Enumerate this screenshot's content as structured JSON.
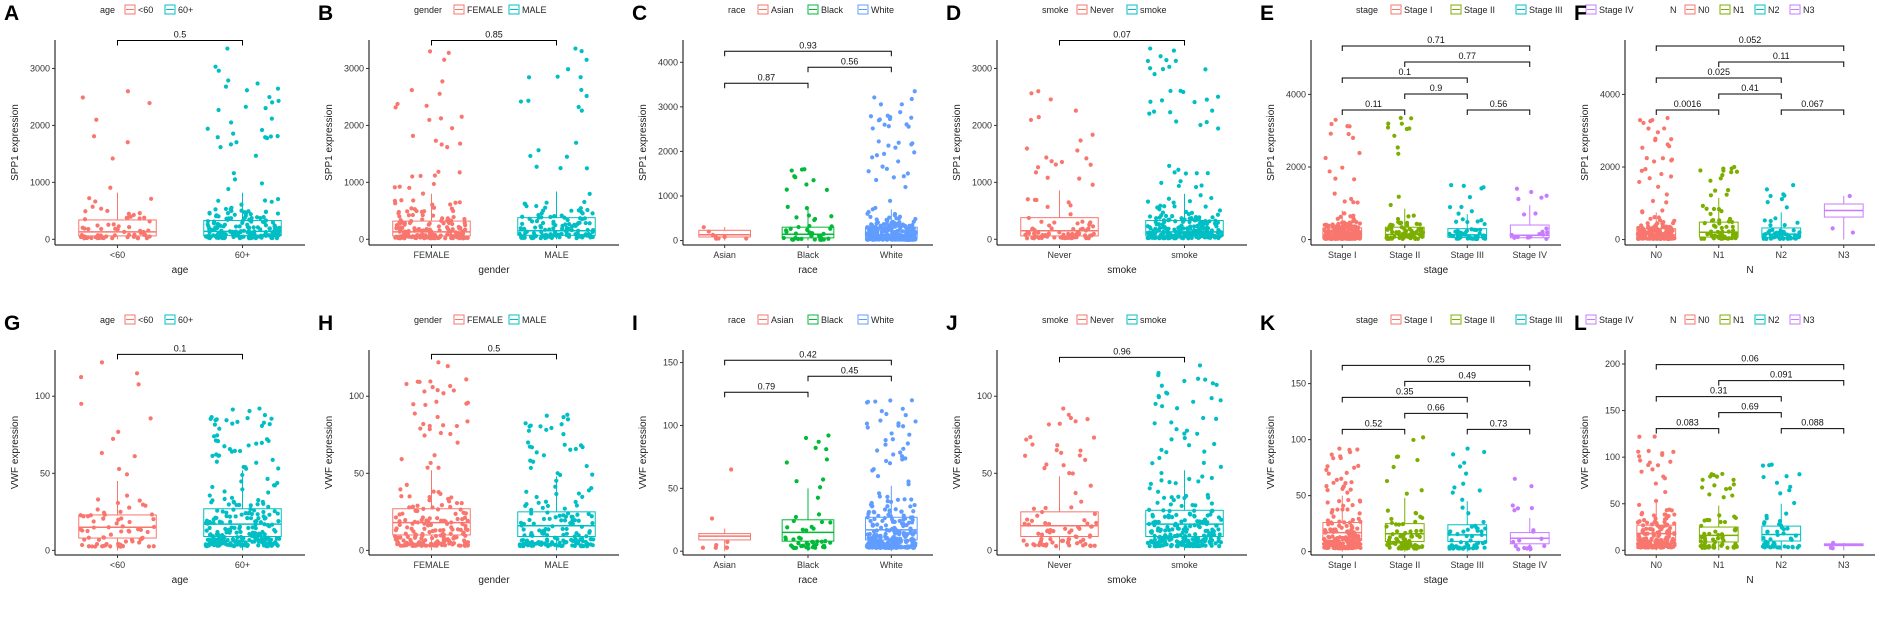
{
  "chart_data": [
    {
      "panel": "A",
      "type": "box",
      "legend_title": "age",
      "groups": [
        "<60",
        "60+"
      ],
      "colors": [
        "#F8766D",
        "#00BFC4"
      ],
      "xlabel": "age",
      "ylabel": "SPP1 expression",
      "yticks": [
        0,
        1000,
        2000,
        3000
      ],
      "ylim": [
        -100,
        3500
      ],
      "medians": [
        130,
        140
      ],
      "q1": [
        60,
        65
      ],
      "q3": [
        340,
        330
      ],
      "upper_whisker": [
        820,
        820
      ],
      "point_max": [
        2600,
        3350
      ],
      "n_points": [
        70,
        200
      ],
      "comparisons": [
        {
          "pair": [
            1,
            2
          ],
          "p": "0.5"
        }
      ]
    },
    {
      "panel": "B",
      "type": "box",
      "legend_title": "gender",
      "groups": [
        "FEMALE",
        "MALE"
      ],
      "colors": [
        "#F8766D",
        "#00BFC4"
      ],
      "xlabel": "gender",
      "ylabel": "SPP1 expression",
      "yticks": [
        0,
        1000,
        2000,
        3000
      ],
      "ylim": [
        -100,
        3500
      ],
      "medians": [
        130,
        150
      ],
      "q1": [
        60,
        70
      ],
      "q3": [
        320,
        380
      ],
      "upper_whisker": [
        800,
        840
      ],
      "point_max": [
        3300,
        3350
      ],
      "n_points": [
        200,
        150
      ],
      "comparisons": [
        {
          "pair": [
            1,
            2
          ],
          "p": "0.85"
        }
      ]
    },
    {
      "panel": "C",
      "type": "box",
      "legend_title": "race",
      "groups": [
        "Asian",
        "Black",
        "White"
      ],
      "colors": [
        "#F8766D",
        "#00BA38",
        "#619CFF"
      ],
      "xlabel": "race",
      "ylabel": "SPP1 expression",
      "yticks": [
        0,
        1000,
        2000,
        3000,
        4000
      ],
      "ylim": [
        -100,
        4500
      ],
      "medians": [
        130,
        140,
        130
      ],
      "q1": [
        80,
        60,
        60
      ],
      "q3": [
        230,
        300,
        300
      ],
      "upper_whisker": [
        300,
        700,
        700
      ],
      "point_max": [
        300,
        1600,
        3350
      ],
      "n_points": [
        8,
        50,
        280
      ],
      "comparisons": [
        {
          "pair": [
            1,
            2
          ],
          "p": "0.87"
        },
        {
          "pair": [
            1,
            3
          ],
          "p": "0.93"
        },
        {
          "pair": [
            2,
            3
          ],
          "p": "0.56"
        }
      ]
    },
    {
      "panel": "D",
      "type": "box",
      "legend_title": "smoke",
      "groups": [
        "Never",
        "smoke"
      ],
      "colors": [
        "#F8766D",
        "#00BFC4"
      ],
      "xlabel": "smoke",
      "ylabel": "SPP1 expression",
      "yticks": [
        0,
        1000,
        2000,
        3000
      ],
      "ylim": [
        -100,
        3500
      ],
      "medians": [
        150,
        130
      ],
      "q1": [
        60,
        60
      ],
      "q3": [
        380,
        330
      ],
      "upper_whisker": [
        860,
        800
      ],
      "point_max": [
        2600,
        3350
      ],
      "n_points": [
        90,
        260
      ],
      "comparisons": [
        {
          "pair": [
            1,
            2
          ],
          "p": "0.07"
        }
      ]
    },
    {
      "panel": "E",
      "type": "box",
      "legend_title": "stage",
      "groups": [
        "Stage I",
        "Stage II",
        "Stage III",
        "Stage IV"
      ],
      "colors": [
        "#F8766D",
        "#7CAE00",
        "#00BFC4",
        "#C77CFF"
      ],
      "xlabel": "stage",
      "ylabel": "SPP1 expression",
      "yticks": [
        0,
        2000,
        4000
      ],
      "ylim": [
        -150,
        5500
      ],
      "medians": [
        140,
        140,
        130,
        120
      ],
      "q1": [
        60,
        60,
        60,
        50
      ],
      "q3": [
        320,
        340,
        300,
        400
      ],
      "upper_whisker": [
        800,
        850,
        700,
        950
      ],
      "point_max": [
        3300,
        3350,
        1500,
        1400
      ],
      "n_points": [
        190,
        80,
        60,
        18
      ],
      "comparisons": [
        {
          "pair": [
            1,
            2
          ],
          "p": "0.11"
        },
        {
          "pair": [
            1,
            3
          ],
          "p": "0.1"
        },
        {
          "pair": [
            1,
            4
          ],
          "p": "0.71"
        },
        {
          "pair": [
            2,
            3
          ],
          "p": "0.9"
        },
        {
          "pair": [
            2,
            4
          ],
          "p": "0.77"
        },
        {
          "pair": [
            3,
            4
          ],
          "p": "0.56"
        }
      ]
    },
    {
      "panel": "F",
      "type": "box",
      "legend_title": "N",
      "groups": [
        "N0",
        "N1",
        "N2",
        "N3"
      ],
      "colors": [
        "#F8766D",
        "#7CAE00",
        "#00BFC4",
        "#C77CFF"
      ],
      "xlabel": "N",
      "ylabel": "SPP1 expression",
      "yticks": [
        0,
        2000,
        4000
      ],
      "ylim": [
        -150,
        5500
      ],
      "medians": [
        130,
        200,
        150,
        800
      ],
      "q1": [
        60,
        70,
        60,
        620
      ],
      "q3": [
        300,
        480,
        320,
        980
      ],
      "upper_whisker": [
        750,
        1150,
        750,
        1200
      ],
      "point_max": [
        3350,
        2000,
        1500,
        1200
      ],
      "n_points": [
        180,
        70,
        60,
        3
      ],
      "comparisons": [
        {
          "pair": [
            1,
            2
          ],
          "p": "0.0016"
        },
        {
          "pair": [
            1,
            3
          ],
          "p": "0.025"
        },
        {
          "pair": [
            1,
            4
          ],
          "p": "0.052"
        },
        {
          "pair": [
            2,
            3
          ],
          "p": "0.41"
        },
        {
          "pair": [
            2,
            4
          ],
          "p": "0.11"
        },
        {
          "pair": [
            3,
            4
          ],
          "p": "0.067"
        }
      ]
    },
    {
      "panel": "G",
      "type": "box",
      "legend_title": "age",
      "groups": [
        "<60",
        "60+"
      ],
      "colors": [
        "#F8766D",
        "#00BFC4"
      ],
      "xlabel": "age",
      "ylabel": "VWF expression",
      "yticks": [
        0,
        50,
        100
      ],
      "ylim": [
        -3,
        130
      ],
      "medians": [
        15,
        17
      ],
      "q1": [
        8,
        9
      ],
      "q3": [
        23,
        27
      ],
      "upper_whisker": [
        45,
        52
      ],
      "point_max": [
        122,
        92
      ],
      "n_points": [
        80,
        250
      ],
      "comparisons": [
        {
          "pair": [
            1,
            2
          ],
          "p": "0.1"
        }
      ]
    },
    {
      "panel": "H",
      "type": "box",
      "legend_title": "gender",
      "groups": [
        "FEMALE",
        "MALE"
      ],
      "colors": [
        "#F8766D",
        "#00BFC4"
      ],
      "xlabel": "gender",
      "ylabel": "VWF expression",
      "yticks": [
        0,
        50,
        100
      ],
      "ylim": [
        -3,
        130
      ],
      "medians": [
        18,
        16
      ],
      "q1": [
        10,
        9
      ],
      "q3": [
        27,
        25
      ],
      "upper_whisker": [
        52,
        48
      ],
      "point_max": [
        122,
        88
      ],
      "n_points": [
        200,
        170
      ],
      "comparisons": [
        {
          "pair": [
            1,
            2
          ],
          "p": "0.5"
        }
      ]
    },
    {
      "panel": "I",
      "type": "box",
      "legend_title": "race",
      "groups": [
        "Asian",
        "Black",
        "White"
      ],
      "colors": [
        "#F8766D",
        "#00BA38",
        "#619CFF"
      ],
      "xlabel": "race",
      "ylabel": "VWF expression",
      "yticks": [
        0,
        50,
        100,
        150
      ],
      "ylim": [
        -3,
        160
      ],
      "medians": [
        12,
        15,
        17
      ],
      "q1": [
        9,
        8,
        9
      ],
      "q3": [
        14,
        25,
        27
      ],
      "upper_whisker": [
        18,
        50,
        52
      ],
      "point_max": [
        65,
        92,
        120
      ],
      "n_points": [
        8,
        50,
        280
      ],
      "comparisons": [
        {
          "pair": [
            1,
            2
          ],
          "p": "0.79"
        },
        {
          "pair": [
            1,
            3
          ],
          "p": "0.42"
        },
        {
          "pair": [
            2,
            3
          ],
          "p": "0.45"
        }
      ]
    },
    {
      "panel": "J",
      "type": "box",
      "legend_title": "smoke",
      "groups": [
        "Never",
        "smoke"
      ],
      "colors": [
        "#F8766D",
        "#00BFC4"
      ],
      "xlabel": "smoke",
      "ylabel": "VWF expression",
      "yticks": [
        0,
        50,
        100
      ],
      "ylim": [
        -3,
        130
      ],
      "medians": [
        16,
        17
      ],
      "q1": [
        9,
        9
      ],
      "q3": [
        25,
        26
      ],
      "upper_whisker": [
        48,
        52
      ],
      "point_max": [
        92,
        120
      ],
      "n_points": [
        90,
        260
      ],
      "comparisons": [
        {
          "pair": [
            1,
            2
          ],
          "p": "0.96"
        }
      ]
    },
    {
      "panel": "K",
      "type": "box",
      "legend_title": "stage",
      "groups": [
        "Stage I",
        "Stage II",
        "Stage III",
        "Stage IV"
      ],
      "colors": [
        "#F8766D",
        "#7CAE00",
        "#00BFC4",
        "#C77CFF"
      ],
      "xlabel": "stage",
      "ylabel": "VWF expression",
      "yticks": [
        0,
        50,
        100,
        150
      ],
      "ylim": [
        -3,
        180
      ],
      "medians": [
        17,
        16,
        15,
        12
      ],
      "q1": [
        10,
        9,
        9,
        7
      ],
      "q3": [
        26,
        25,
        24,
        17
      ],
      "upper_whisker": [
        50,
        48,
        45,
        30
      ],
      "point_max": [
        92,
        102,
        92,
        65
      ],
      "n_points": [
        190,
        80,
        60,
        18
      ],
      "comparisons": [
        {
          "pair": [
            1,
            2
          ],
          "p": "0.52"
        },
        {
          "pair": [
            1,
            3
          ],
          "p": "0.35"
        },
        {
          "pair": [
            1,
            4
          ],
          "p": "0.25"
        },
        {
          "pair": [
            2,
            3
          ],
          "p": "0.66"
        },
        {
          "pair": [
            2,
            4
          ],
          "p": "0.49"
        },
        {
          "pair": [
            3,
            4
          ],
          "p": "0.73"
        }
      ]
    },
    {
      "panel": "L",
      "type": "box",
      "legend_title": "N",
      "groups": [
        "N0",
        "N1",
        "N2",
        "N3"
      ],
      "colors": [
        "#F8766D",
        "#7CAE00",
        "#00BFC4",
        "#C77CFF"
      ],
      "xlabel": "N",
      "ylabel": "VWF expression",
      "yticks": [
        0,
        50,
        100,
        150,
        200
      ],
      "ylim": [
        -5,
        215
      ],
      "medians": [
        18,
        16,
        17,
        6
      ],
      "q1": [
        10,
        9,
        10,
        5
      ],
      "q3": [
        27,
        25,
        26,
        7
      ],
      "upper_whisker": [
        52,
        48,
        50,
        8
      ],
      "point_max": [
        122,
        82,
        92,
        8
      ],
      "n_points": [
        180,
        70,
        60,
        3
      ],
      "comparisons": [
        {
          "pair": [
            1,
            2
          ],
          "p": "0.083"
        },
        {
          "pair": [
            1,
            3
          ],
          "p": "0.31"
        },
        {
          "pair": [
            1,
            4
          ],
          "p": "0.06"
        },
        {
          "pair": [
            2,
            3
          ],
          "p": "0.69"
        },
        {
          "pair": [
            2,
            4
          ],
          "p": "0.091"
        },
        {
          "pair": [
            3,
            4
          ],
          "p": "0.088"
        }
      ]
    }
  ]
}
